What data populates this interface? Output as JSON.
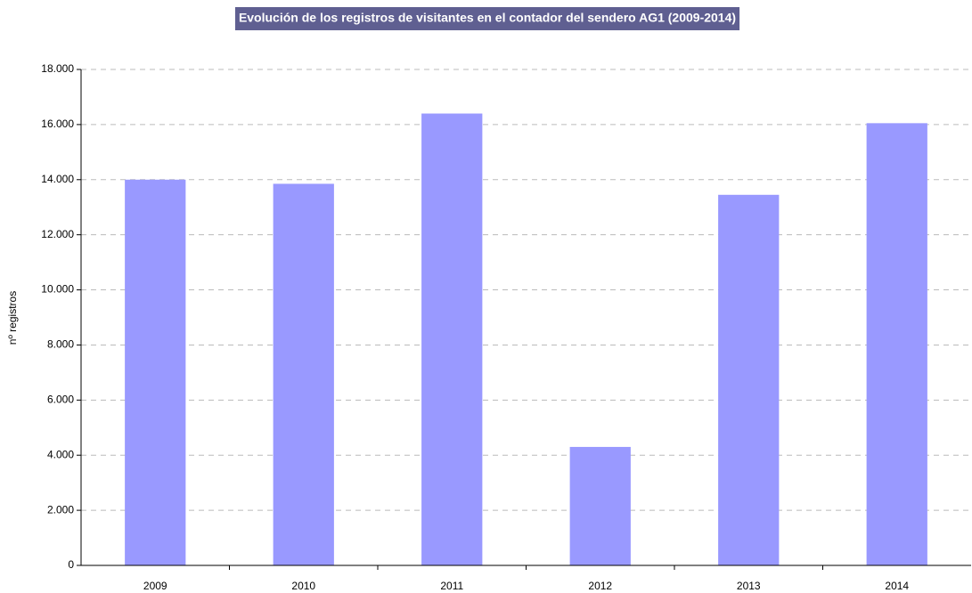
{
  "chart_data": {
    "type": "bar",
    "title": "Evolución de los registros de visitantes en el contador del sendero AG1 (2009-2014)",
    "y_label": "nº registros",
    "categories": [
      "2009",
      "2010",
      "2011",
      "2012",
      "2013",
      "2014"
    ],
    "values": [
      14000,
      13850,
      16400,
      4300,
      13450,
      16050
    ],
    "color": "#9999ff",
    "ylim": [
      0,
      18000
    ],
    "yticks": [
      0,
      {
        "value": 2000,
        "label": "2.000"
      },
      {
        "value": 4000,
        "label": "4.000"
      },
      {
        "value": 6000,
        "label": "6.000"
      },
      {
        "value": 8000,
        "label": "8.000"
      },
      {
        "value": 10000,
        "label": "10.000"
      },
      {
        "value": 12000,
        "label": "12.000"
      },
      {
        "value": 14000,
        "label": "14.000"
      },
      {
        "value": 16000,
        "label": "16.000"
      },
      {
        "value": 18000,
        "label": "18.000"
      }
    ],
    "grid": true
  }
}
